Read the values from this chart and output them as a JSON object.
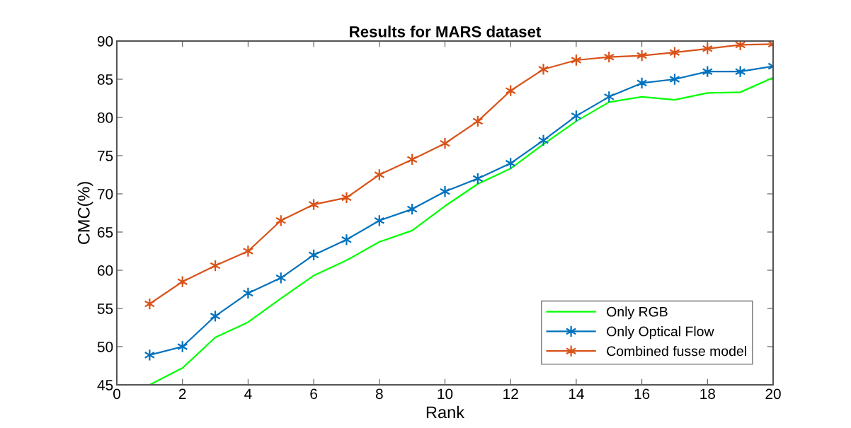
{
  "chart_data": {
    "type": "line",
    "title": "Results for MARS dataset",
    "xlabel": "Rank",
    "ylabel": "CMC(%)",
    "x": [
      1,
      2,
      3,
      4,
      5,
      6,
      7,
      8,
      9,
      10,
      11,
      12,
      13,
      14,
      15,
      16,
      17,
      18,
      19,
      20
    ],
    "series": [
      {
        "name": "Only RGB",
        "color": "#00ff00",
        "marker": "none",
        "values": [
          45,
          47.2,
          51.2,
          53.2,
          56.3,
          59.3,
          61.3,
          63.7,
          65.2,
          68.4,
          71.3,
          73.3,
          76.5,
          79.5,
          82,
          82.7,
          82.3,
          83.2,
          83.3,
          85.2
        ]
      },
      {
        "name": "Only Optical Flow",
        "color": "#0072bd",
        "marker": "cross",
        "values": [
          48.9,
          50,
          54,
          57,
          59,
          62,
          64,
          66.5,
          68,
          70.3,
          72,
          74,
          77,
          80.2,
          82.7,
          84.5,
          85,
          86,
          86,
          86.7
        ]
      },
      {
        "name": "Combined fusse model",
        "color": "#d95319",
        "marker": "cross",
        "values": [
          55.6,
          58.5,
          60.6,
          62.5,
          66.5,
          68.6,
          69.5,
          72.5,
          74.5,
          76.6,
          79.5,
          83.5,
          86.3,
          87.5,
          87.9,
          88.1,
          88.5,
          89,
          89.5,
          89.6
        ]
      }
    ],
    "xlim": [
      0,
      20
    ],
    "xticks": [
      0,
      2,
      4,
      6,
      8,
      10,
      12,
      14,
      16,
      18,
      20
    ],
    "ylim": [
      45,
      90
    ],
    "yticks": [
      45,
      50,
      55,
      60,
      65,
      70,
      75,
      80,
      85,
      90
    ],
    "grid": false,
    "legend": "bottom right",
    "line_style": "solid"
  }
}
